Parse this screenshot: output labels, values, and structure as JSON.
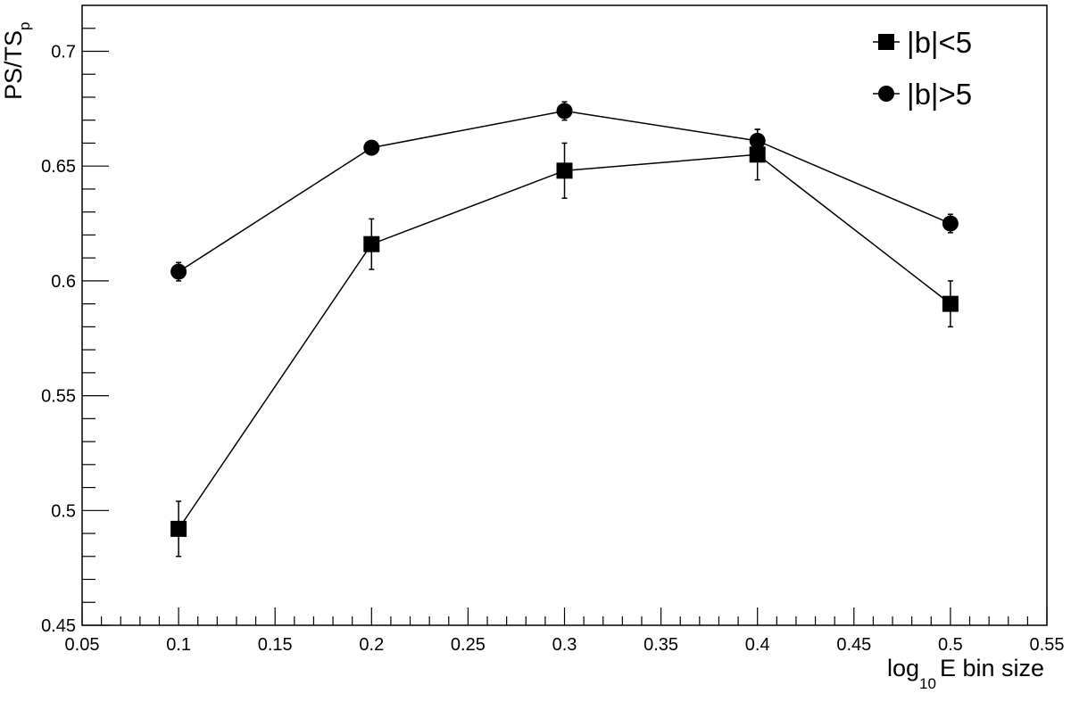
{
  "chart_data": {
    "type": "line",
    "xlabel": {
      "prefix": "log",
      "sub": "10",
      "suffix": "E bin size"
    },
    "ylabel": {
      "main": "PS/TS",
      "sub": "p"
    },
    "xlim": [
      0.05,
      0.55
    ],
    "ylim": [
      0.45,
      0.72
    ],
    "x_ticks": [
      "0.05",
      "0.1",
      "0.15",
      "0.2",
      "0.25",
      "0.3",
      "0.35",
      "0.4",
      "0.45",
      "0.5",
      "0.55"
    ],
    "y_ticks": [
      "0.45",
      "0.5",
      "0.55",
      "0.6",
      "0.65",
      "0.7"
    ],
    "x": [
      0.1,
      0.2,
      0.3,
      0.4,
      0.5
    ],
    "grid": false,
    "legend_position": "top-right",
    "series": [
      {
        "name": "|b|<5",
        "marker": "square",
        "color": "#000000",
        "values": [
          0.492,
          0.616,
          0.648,
          0.655,
          0.59
        ],
        "errors": [
          0.012,
          0.011,
          0.012,
          0.011,
          0.01
        ]
      },
      {
        "name": "|b|>5",
        "marker": "circle",
        "color": "#000000",
        "values": [
          0.604,
          0.658,
          0.674,
          0.661,
          0.625
        ],
        "errors": [
          0.004,
          0.003,
          0.004,
          0.005,
          0.004
        ]
      }
    ]
  }
}
